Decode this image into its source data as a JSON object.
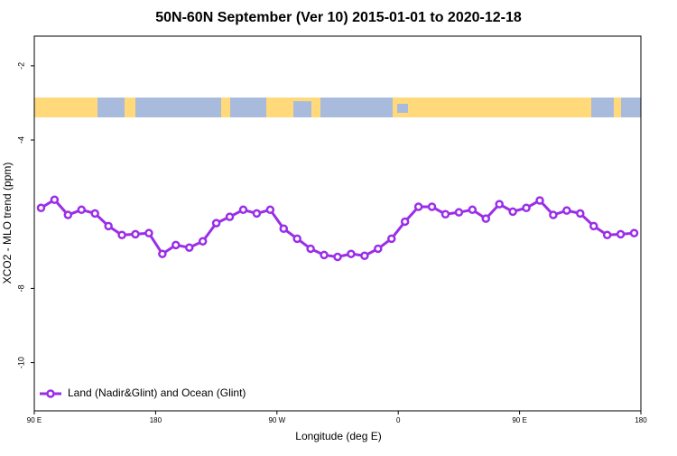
{
  "chart_data": {
    "type": "line",
    "title": "50N-60N September (Ver 10)   2015-01-01 to 2020-12-18",
    "x_label": "Longitude (deg E)",
    "y_label": "XCO2 - MLO trend (ppm)",
    "xlim": [
      90,
      540
    ],
    "xticks": [
      {
        "value": 90,
        "label": "90 E"
      },
      {
        "value": 180,
        "label": "180"
      },
      {
        "value": 270,
        "label": "90 W"
      },
      {
        "value": 360,
        "label": "0"
      },
      {
        "value": 450,
        "label": "90 E"
      },
      {
        "value": 540,
        "label": "180"
      }
    ],
    "ylim": [
      -11.3,
      -1.2
    ],
    "yticks": [
      -2,
      -4,
      -8,
      -10
    ],
    "legend": "bottom-left",
    "x": [
      95,
      105,
      115,
      125,
      135,
      145,
      155,
      165,
      175,
      185,
      195,
      205,
      215,
      225,
      235,
      245,
      255,
      265,
      275,
      285,
      295,
      305,
      315,
      325,
      335,
      345,
      355,
      365,
      375,
      385,
      395,
      405,
      415,
      425,
      435,
      445,
      455,
      465,
      475,
      485,
      495,
      505,
      515,
      525,
      535
    ],
    "series": [
      {
        "name": "Land (Nadir&Glint) and Ocean (Glint)",
        "color": "#9a2ee8",
        "values": [
          -5.83,
          -5.61,
          -6.02,
          -5.88,
          -5.98,
          -6.32,
          -6.56,
          -6.54,
          -6.51,
          -7.07,
          -6.83,
          -6.9,
          -6.73,
          -6.24,
          -6.07,
          -5.88,
          -5.98,
          -5.88,
          -6.39,
          -6.66,
          -6.93,
          -7.1,
          -7.15,
          -7.07,
          -7.12,
          -6.93,
          -6.66,
          -6.2,
          -5.8,
          -5.8,
          -6.0,
          -5.95,
          -5.88,
          -6.12,
          -5.73,
          -5.93,
          -5.83,
          -5.63,
          -6.02,
          -5.9,
          -5.98,
          -6.32,
          -6.56,
          -6.54,
          -6.51
        ]
      }
    ]
  }
}
